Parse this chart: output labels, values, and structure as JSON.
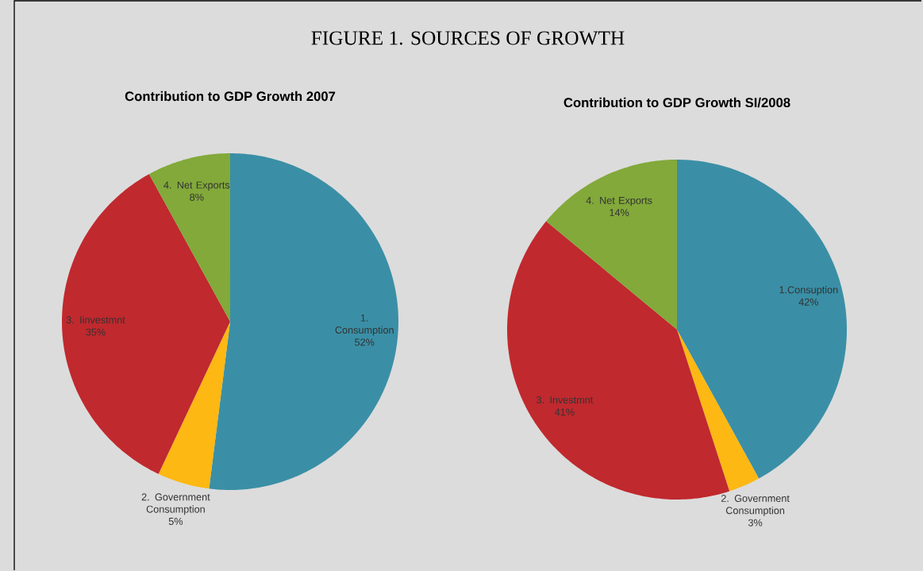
{
  "chart_data": [
    {
      "type": "other",
      "title": "FIGURE 1. SOURCES OF GROWTH"
    },
    {
      "type": "pie",
      "title": "Contribution to GDP Growth 2007",
      "categories": [
        "1. Consumption",
        "2. Government Consumption",
        "3. Iinvestmnt",
        "4. Net Exports"
      ],
      "values": [
        52,
        5,
        35,
        8
      ],
      "value_labels": [
        "52%",
        "5%",
        "35%",
        "8%"
      ],
      "colors": [
        "#3a8fa6",
        "#fdb813",
        "#c0292e",
        "#82a93a"
      ]
    },
    {
      "type": "pie",
      "title": "Contribution to GDP Growth SI/2008",
      "categories": [
        "1.Consuption",
        "2. Government Consumption",
        "3. Investmnt",
        "4. Net Exports"
      ],
      "values": [
        42,
        3,
        41,
        14
      ],
      "value_labels": [
        "42%",
        "3%",
        "41%",
        "14%"
      ],
      "colors": [
        "#3a8fa6",
        "#fdb813",
        "#c0292e",
        "#82a93a"
      ]
    }
  ]
}
